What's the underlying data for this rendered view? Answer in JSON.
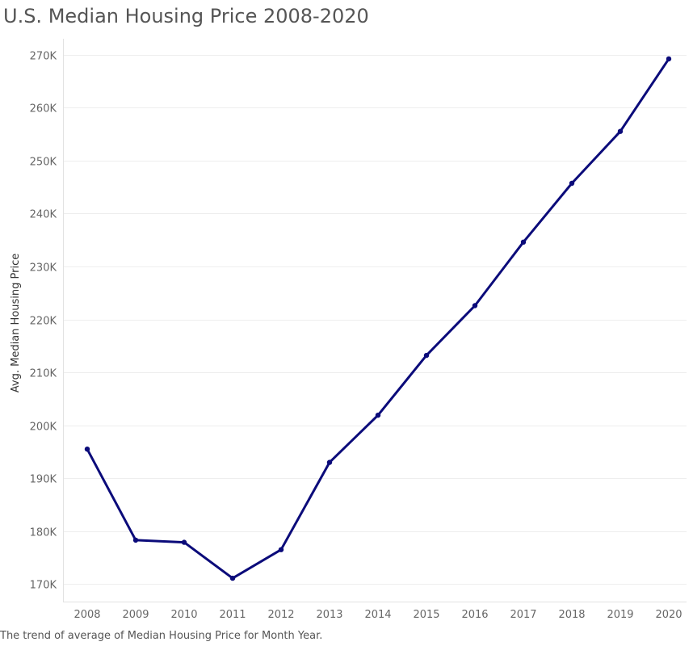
{
  "title": "U.S. Median Housing Price 2008-2020",
  "caption": "The trend of average of Median Housing Price for Month Year.",
  "chart_data": {
    "type": "line",
    "title": "U.S. Median Housing Price 2008-2020",
    "xlabel": "",
    "ylabel": "Avg. Median Housing Price",
    "categories": [
      "2008",
      "2009",
      "2010",
      "2011",
      "2012",
      "2013",
      "2014",
      "2015",
      "2016",
      "2017",
      "2018",
      "2019",
      "2020"
    ],
    "values": [
      195500,
      178300,
      177900,
      171100,
      176500,
      193000,
      201900,
      213200,
      222600,
      234600,
      245700,
      255500,
      269200
    ],
    "y_ticks": [
      170000,
      180000,
      190000,
      200000,
      210000,
      220000,
      230000,
      240000,
      250000,
      260000,
      270000
    ],
    "y_tick_labels": [
      "170K",
      "180K",
      "190K",
      "200K",
      "210K",
      "220K",
      "230K",
      "240K",
      "250K",
      "260K",
      "270K"
    ],
    "ylim": [
      166700,
      273000
    ],
    "grid": true,
    "legend": "none",
    "line_color": "#0b0b7a",
    "grid_color": "#eeeeee",
    "text_color": "#666666"
  }
}
